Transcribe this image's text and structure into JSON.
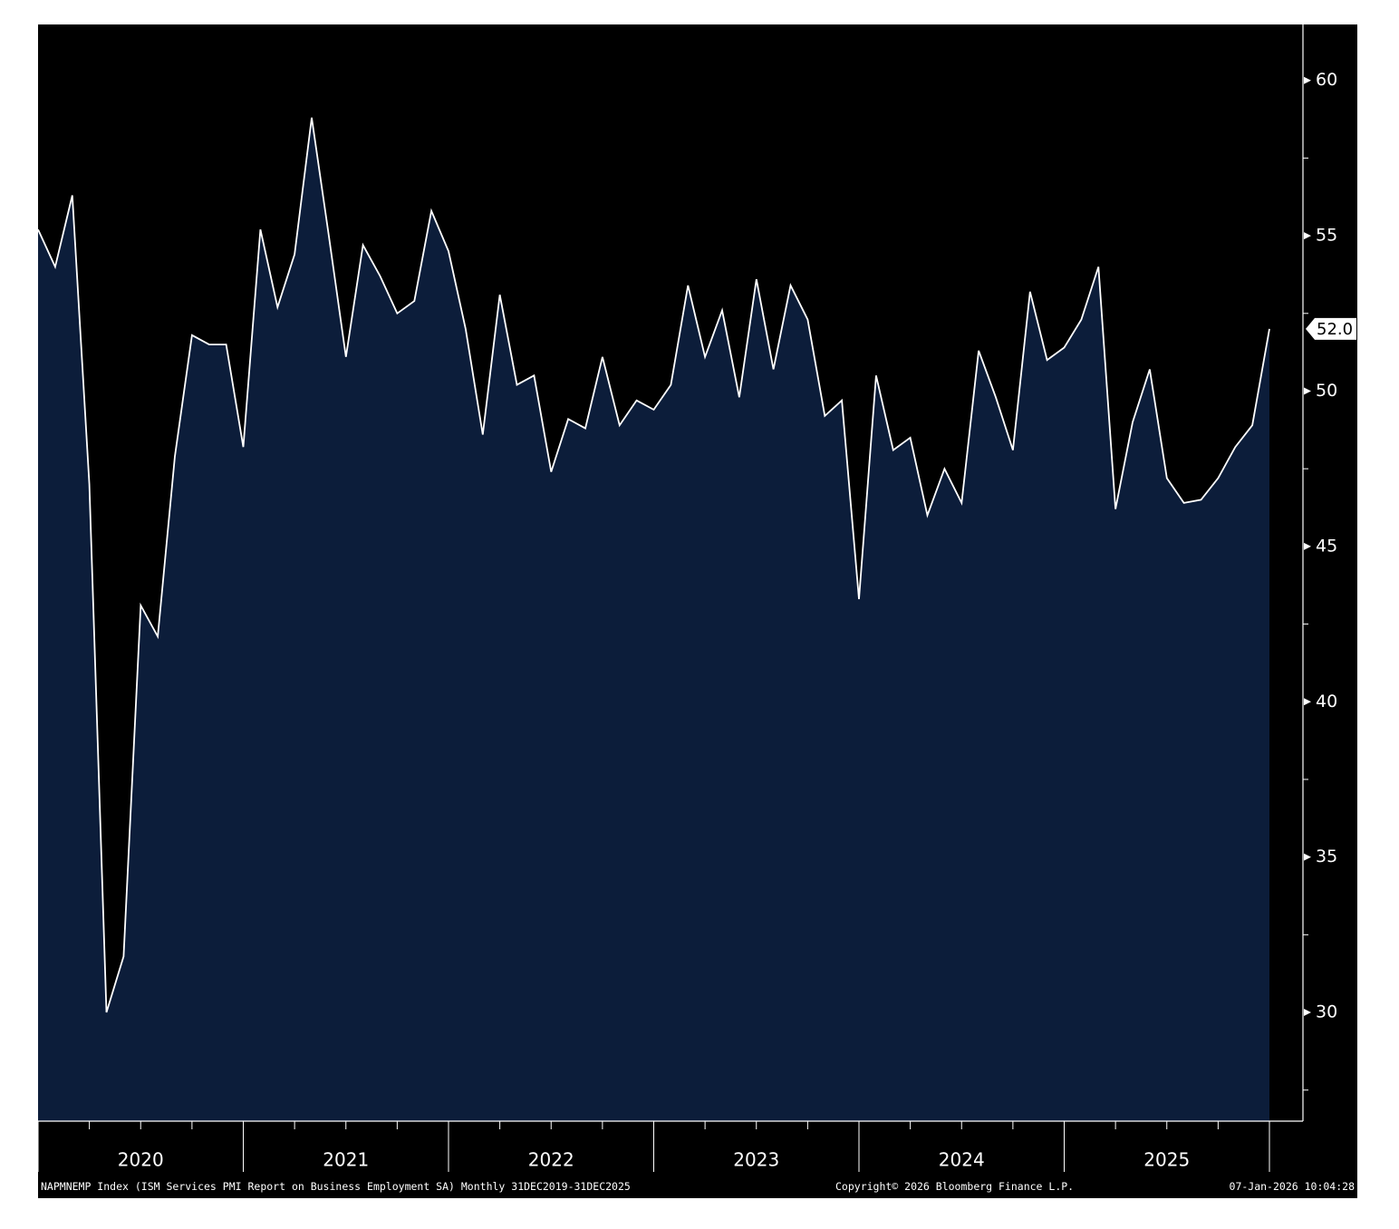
{
  "colors": {
    "background": "#000000",
    "area_fill": "#0c1d3a",
    "line": "#ffffff",
    "axis": "#ffffff",
    "page": "#ffffff"
  },
  "footer": {
    "source": "NAPMNEMP Index (ISM Services PMI Report on Business Employment SA) Monthly 31DEC2019-31DEC2025",
    "copyright": "Copyright© 2026 Bloomberg Finance L.P.",
    "timestamp": "07-Jan-2026 10:04:28"
  },
  "chart_data": {
    "type": "area",
    "title": "",
    "xlabel": "",
    "ylabel": "",
    "grid": false,
    "y_axis_side": "right",
    "xlim": [
      "2019-12",
      "2025-12"
    ],
    "ylim": [
      26.5,
      61.8
    ],
    "yticks": [
      30,
      35,
      40,
      45,
      50,
      55,
      60
    ],
    "ytick_labels": [
      "30",
      "35",
      "40",
      "45",
      "50",
      "55",
      "60"
    ],
    "xtick_labels": [
      "2020",
      "2021",
      "2022",
      "2023",
      "2024",
      "2025"
    ],
    "last_value_label": "52.0",
    "series": [
      {
        "x": [
          "2019-12",
          "2020-01",
          "2020-02",
          "2020-03",
          "2020-04",
          "2020-05",
          "2020-06",
          "2020-07",
          "2020-08",
          "2020-09",
          "2020-10",
          "2020-11",
          "2020-12",
          "2021-01",
          "2021-02",
          "2021-03",
          "2021-04",
          "2021-05",
          "2021-06",
          "2021-07",
          "2021-08",
          "2021-09",
          "2021-10",
          "2021-11",
          "2021-12",
          "2022-01",
          "2022-02",
          "2022-03",
          "2022-04",
          "2022-05",
          "2022-06",
          "2022-07",
          "2022-08",
          "2022-09",
          "2022-10",
          "2022-11",
          "2022-12",
          "2023-01",
          "2023-02",
          "2023-03",
          "2023-04",
          "2023-05",
          "2023-06",
          "2023-07",
          "2023-08",
          "2023-09",
          "2023-10",
          "2023-11",
          "2023-12",
          "2024-01",
          "2024-02",
          "2024-03",
          "2024-04",
          "2024-05",
          "2024-06",
          "2024-07",
          "2024-08",
          "2024-09",
          "2024-10",
          "2024-11",
          "2024-12",
          "2025-01",
          "2025-02",
          "2025-03",
          "2025-04",
          "2025-05",
          "2025-06",
          "2025-07",
          "2025-08",
          "2025-09",
          "2025-10",
          "2025-11",
          "2025-12"
        ],
        "values": [
          55.2,
          54.0,
          56.3,
          47.0,
          30.0,
          31.8,
          43.1,
          42.1,
          47.9,
          51.8,
          51.5,
          51.5,
          48.2,
          55.2,
          52.7,
          54.4,
          58.8,
          55.0,
          51.1,
          54.7,
          53.7,
          52.5,
          52.9,
          55.8,
          54.5,
          52.0,
          48.6,
          53.1,
          50.2,
          50.5,
          47.4,
          49.1,
          48.8,
          51.1,
          48.9,
          49.7,
          49.4,
          50.2,
          53.4,
          51.1,
          52.6,
          49.8,
          53.6,
          50.7,
          53.4,
          52.3,
          49.2,
          49.7,
          43.3,
          50.5,
          48.1,
          48.5,
          46.0,
          47.5,
          46.4,
          51.3,
          49.8,
          48.1,
          53.2,
          51.0,
          51.4,
          52.3,
          54.0,
          46.2,
          49.0,
          50.7,
          47.2,
          46.4,
          46.5,
          47.2,
          48.2,
          48.9,
          52.0
        ]
      }
    ]
  }
}
